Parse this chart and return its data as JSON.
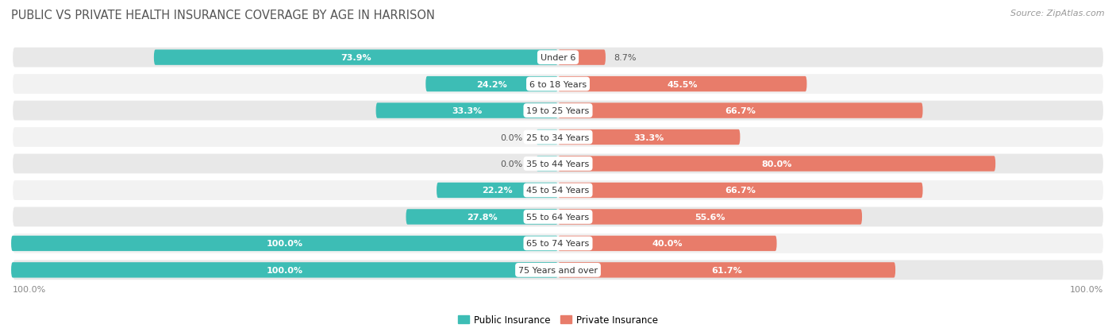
{
  "title": "PUBLIC VS PRIVATE HEALTH INSURANCE COVERAGE BY AGE IN HARRISON",
  "source": "Source: ZipAtlas.com",
  "categories": [
    "Under 6",
    "6 to 18 Years",
    "19 to 25 Years",
    "25 to 34 Years",
    "35 to 44 Years",
    "45 to 54 Years",
    "55 to 64 Years",
    "65 to 74 Years",
    "75 Years and over"
  ],
  "public": [
    73.9,
    24.2,
    33.3,
    0.0,
    0.0,
    22.2,
    27.8,
    100.0,
    100.0
  ],
  "private": [
    8.7,
    45.5,
    66.7,
    33.3,
    80.0,
    66.7,
    55.6,
    40.0,
    61.7
  ],
  "public_color": "#3dbdb5",
  "private_color": "#e87c6a",
  "public_color_light": "#82d4cf",
  "private_color_light": "#f2b0a4",
  "row_bg_color": "#e8e8e8",
  "row_bg_color2": "#f2f2f2",
  "axis_label": "100.0%",
  "title_fontsize": 10.5,
  "source_fontsize": 8,
  "bar_label_fontsize": 8,
  "cat_label_fontsize": 8,
  "legend_fontsize": 8.5,
  "inside_label_threshold": 12
}
